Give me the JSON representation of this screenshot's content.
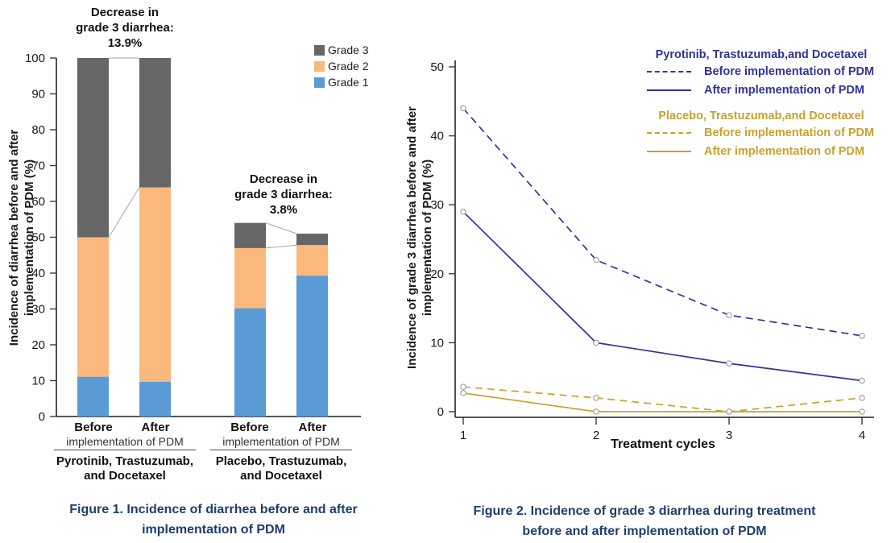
{
  "colors": {
    "grade1_blue": "#5B9BD5",
    "grade2_orange": "#FBB87D",
    "grade3_gray": "#666666",
    "pyrotinib_navy": "#32329B",
    "placebo_gold": "#C9A22B",
    "caption_navy": "#1F3D6D",
    "connector_gray": "#A6A6A6"
  },
  "figure1": {
    "ylabel": {
      "line1": "Incidence of diarrhea before and after",
      "line2": "implementation of PDM (%)"
    },
    "annotation1": {
      "line1": "Decrease in",
      "line2": "grade 3 diarrhea:",
      "line3": "13.9%"
    },
    "annotation2": {
      "line1": "Decrease in",
      "line2": "grade 3 diarrhea:",
      "line3": "3.8%"
    },
    "legend": [
      {
        "label": "Grade 3",
        "color": "#666666"
      },
      {
        "label": "Grade 2",
        "color": "#FBB87D"
      },
      {
        "label": "Grade 1",
        "color": "#5B9BD5"
      }
    ],
    "group1": {
      "before": "Before",
      "after": "After",
      "sub": "implementation of PDM",
      "name1": "Pyrotinib, Trastuzumab,",
      "name2": "and Docetaxel"
    },
    "group2": {
      "before": "Before",
      "after": "After",
      "sub": "implementation of PDM",
      "name1": "Placebo, Trastuzumab,",
      "name2": "and Docetaxel"
    },
    "caption": {
      "line1": "Figure 1. Incidence of diarrhea before and after",
      "line2": "implementation of PDM"
    }
  },
  "figure2": {
    "ylabel": {
      "line1": "Incidence of grade 3 diarrhea before and after",
      "line2": "implementation of PDM (%)"
    },
    "xlabel": "Treatment cycles",
    "legend": {
      "pyrotinib_title": "Pyrotinib, Trastuzumab,and Docetaxel",
      "pyrotinib_before": "Before implementation of PDM",
      "pyrotinib_after": "After implementation of PDM",
      "placebo_title": "Placebo, Trastuzumab,and Docetaxel",
      "placebo_before": "Before implementation of PDM",
      "placebo_after": "After implementation of PDM"
    },
    "caption": {
      "line1": "Figure 2. Incidence of grade 3 diarrhea during treatment",
      "line2": "before and after implementation of PDM"
    }
  },
  "chart_data": [
    {
      "type": "bar",
      "stacked": true,
      "title": "",
      "categories": [
        "Before",
        "After",
        "Before",
        "After"
      ],
      "group_labels": [
        "Pyrotinib, Trastuzumab, and Docetaxel",
        "Placebo, Trastuzumab, and Docetaxel"
      ],
      "series": [
        {
          "name": "Grade 1",
          "color": "#5B9BD5",
          "values": [
            11.1,
            9.7,
            30.2,
            39.3
          ]
        },
        {
          "name": "Grade 2",
          "color": "#FBB87D",
          "values": [
            38.9,
            54.2,
            16.8,
            8.5
          ]
        },
        {
          "name": "Grade 3",
          "color": "#666666",
          "values": [
            50.0,
            36.1,
            7.0,
            3.2
          ]
        }
      ],
      "bar_totals": [
        100,
        100,
        54,
        51
      ],
      "annotations": [
        "Decrease in grade 3 diarrhea: 13.9%",
        "Decrease in grade 3 diarrhea: 3.8%"
      ],
      "xlabel": "",
      "ylabel": "Incidence of diarrhea before and after implementation of PDM (%)",
      "ylim": [
        0,
        100
      ],
      "yticks": [
        0,
        10,
        20,
        30,
        40,
        50,
        60,
        70,
        80,
        90,
        100
      ],
      "grid": false,
      "legend_position": "top-right"
    },
    {
      "type": "line",
      "title": "",
      "x": [
        1,
        2,
        3,
        4
      ],
      "xlabel": "Treatment cycles",
      "ylabel": "Incidence of grade 3 diarrhea before and after implementation of PDM (%)",
      "ylim": [
        0,
        50
      ],
      "yticks": [
        0,
        10,
        20,
        30,
        40,
        50
      ],
      "grid": false,
      "legend_position": "top-right",
      "marker": "open-circle",
      "series": [
        {
          "name": "Pyrotinib, Trastuzumab, and Docetaxel - Before implementation of PDM",
          "color": "#32329B",
          "style": "dashed",
          "values": [
            44,
            22,
            14,
            11
          ]
        },
        {
          "name": "Pyrotinib, Trastuzumab, and Docetaxel - After implementation of PDM",
          "color": "#32329B",
          "style": "solid",
          "values": [
            29,
            10,
            7,
            4.5
          ]
        },
        {
          "name": "Placebo, Trastuzumab, and Docetaxel - Before implementation of PDM",
          "color": "#C9A22B",
          "style": "dashed",
          "values": [
            3.6,
            2,
            0,
            2
          ]
        },
        {
          "name": "Placebo, Trastuzumab, and Docetaxel - After implementation of PDM",
          "color": "#C9A22B",
          "style": "solid",
          "values": [
            2.7,
            0,
            0,
            0
          ]
        }
      ]
    }
  ]
}
